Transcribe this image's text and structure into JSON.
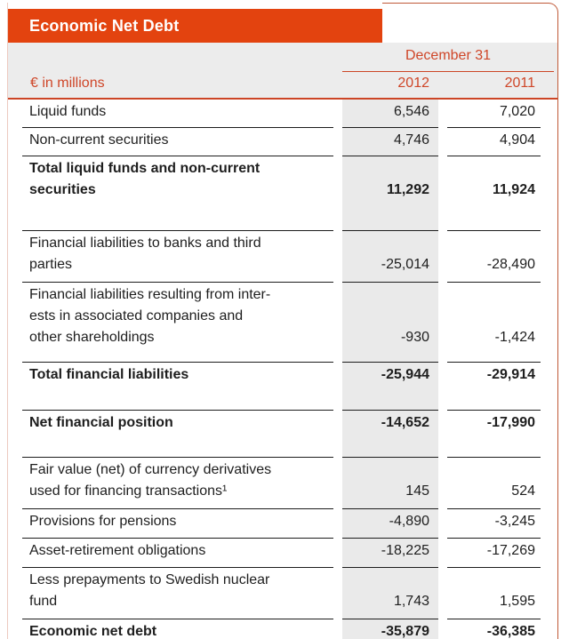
{
  "title_bar": {
    "title": "Economic Net Debt"
  },
  "table": {
    "unit_label": "€ in millions",
    "column_group": "December 31",
    "columns": [
      "2012",
      "2011"
    ],
    "rows": [
      {
        "label": "Liquid funds",
        "values": [
          "6,546",
          "7,020"
        ],
        "style": "item"
      },
      {
        "label": "Non-current securities",
        "values": [
          "4,746",
          "4,904"
        ],
        "style": "item"
      },
      {
        "label": "Total liquid funds and non-current\nsecurities",
        "values": [
          "11,292",
          "11,924"
        ],
        "style": "total"
      },
      {
        "label": "Financial liabilities to banks and third\nparties",
        "values": [
          "-25,014",
          "-28,490"
        ],
        "style": "item"
      },
      {
        "label": "Financial liabilities resulting from inter-\nests in associated companies and\nother shareholdings",
        "values": [
          "-930",
          "-1,424"
        ],
        "style": "item"
      },
      {
        "label": "Total financial liabilities",
        "values": [
          "-25,944",
          "-29,914"
        ],
        "style": "total"
      },
      {
        "label": "Net financial position",
        "values": [
          "-14,652",
          "-17,990"
        ],
        "style": "total"
      },
      {
        "label": "Fair value (net) of currency derivatives\nused for financing transactions¹",
        "values": [
          "145",
          "524"
        ],
        "style": "item"
      },
      {
        "label": "Provisions for pensions",
        "values": [
          "-4,890",
          "-3,245"
        ],
        "style": "item"
      },
      {
        "label": "Asset-retirement obligations",
        "values": [
          "-18,225",
          "-17,269"
        ],
        "style": "item"
      },
      {
        "label": "Less prepayments to Swedish nuclear\nfund",
        "values": [
          "1,743",
          "1,595"
        ],
        "style": "item"
      },
      {
        "label": "Economic net debt",
        "values": [
          "-35,879",
          "-36,385"
        ],
        "style": "total"
      }
    ]
  },
  "colors": {
    "accent_orange": "#e3430f",
    "accent_red_text": "#cf4628",
    "red_rule": "#cc4526",
    "header_band_gray": "#ececec",
    "column_stripe_gray": "#eaeaea",
    "row_rule": "#1d1d1d",
    "border_left": "#edcac0",
    "border_right": "#c05a38"
  }
}
